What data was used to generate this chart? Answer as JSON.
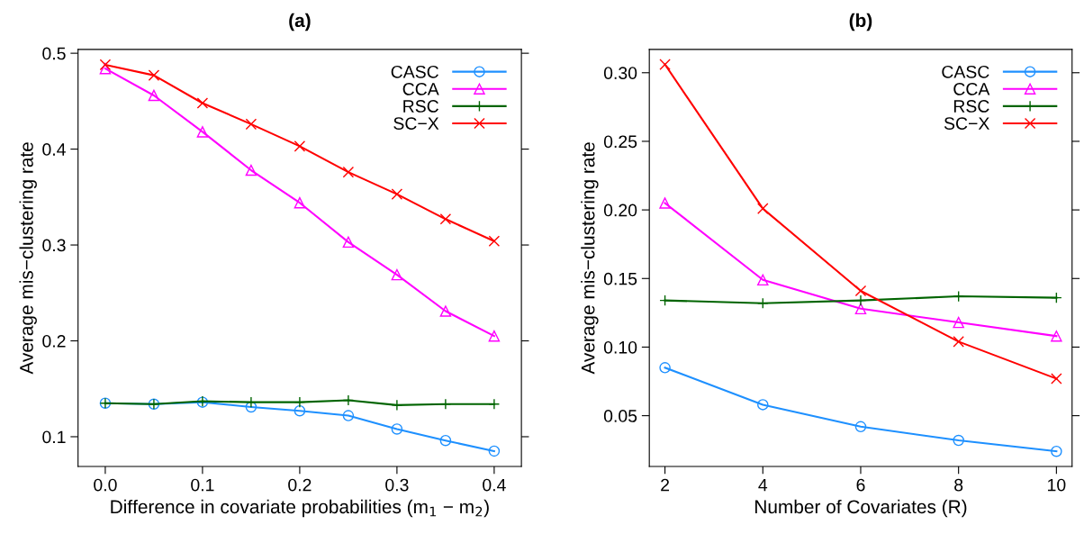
{
  "chart_data": [
    {
      "type": "line",
      "title": "(a)",
      "xlabel": "Difference in covariate probabilities (m$_{1}$ − m$_{2}$)",
      "ylabel": "Average mis−clustering rate",
      "x": [
        0.0,
        0.05,
        0.1,
        0.15,
        0.2,
        0.25,
        0.3,
        0.35,
        0.4
      ],
      "xlim": [
        -0.028,
        0.428
      ],
      "xticks": [
        {
          "value": 0,
          "label": "0.0"
        },
        0.1,
        0.2,
        0.3,
        0.4
      ],
      "ylim": [
        0.069,
        0.504
      ],
      "yticks": [
        0.1,
        0.2,
        0.3,
        0.4,
        0.5
      ],
      "grid": false,
      "legend": "top right",
      "line_style": "solid",
      "series": [
        {
          "name": "CASC",
          "color": "#1e90ff",
          "marker": "circle",
          "values": [
            0.135,
            0.134,
            0.136,
            0.131,
            0.127,
            0.122,
            0.108,
            0.096,
            0.085
          ]
        },
        {
          "name": "CCA",
          "color": "#ff00ff",
          "marker": "triangle",
          "values": [
            0.484,
            0.456,
            0.418,
            0.378,
            0.344,
            0.303,
            0.269,
            0.231,
            0.205
          ]
        },
        {
          "name": "RSC",
          "color": "#006400",
          "marker": "plus",
          "values": [
            0.135,
            0.134,
            0.137,
            0.136,
            0.136,
            0.138,
            0.133,
            0.134,
            0.134
          ]
        },
        {
          "name": "SC−X",
          "color": "#ff0000",
          "marker": "cross",
          "values": [
            0.488,
            0.477,
            0.448,
            0.426,
            0.403,
            0.376,
            0.353,
            0.327,
            0.304
          ]
        }
      ]
    },
    {
      "type": "line",
      "title": "(b)",
      "xlabel": "Number of Covariates (R)",
      "ylabel": "Average mis−clustering rate",
      "x": [
        2,
        4,
        6,
        8,
        10
      ],
      "xlim": [
        1.68,
        10.32
      ],
      "xticks": [
        2,
        4,
        6,
        8,
        10
      ],
      "ylim": [
        0.013,
        0.317
      ],
      "yticks": [
        0.05,
        {
          "value": 0.1,
          "label": "0.10"
        },
        0.15,
        {
          "value": 0.2,
          "label": "0.20"
        },
        0.25,
        {
          "value": 0.3,
          "label": "0.30"
        }
      ],
      "grid": false,
      "legend": "top right",
      "line_style": "solid",
      "series": [
        {
          "name": "CASC",
          "color": "#1e90ff",
          "marker": "circle",
          "values": [
            0.085,
            0.058,
            0.042,
            0.032,
            0.024
          ]
        },
        {
          "name": "CCA",
          "color": "#ff00ff",
          "marker": "triangle",
          "values": [
            0.205,
            0.149,
            0.128,
            0.118,
            0.108
          ]
        },
        {
          "name": "RSC",
          "color": "#006400",
          "marker": "plus",
          "values": [
            0.134,
            0.132,
            0.134,
            0.137,
            0.136
          ]
        },
        {
          "name": "SC−X",
          "color": "#ff0000",
          "marker": "cross",
          "values": [
            0.306,
            0.201,
            0.141,
            0.104,
            0.077
          ]
        }
      ]
    }
  ]
}
